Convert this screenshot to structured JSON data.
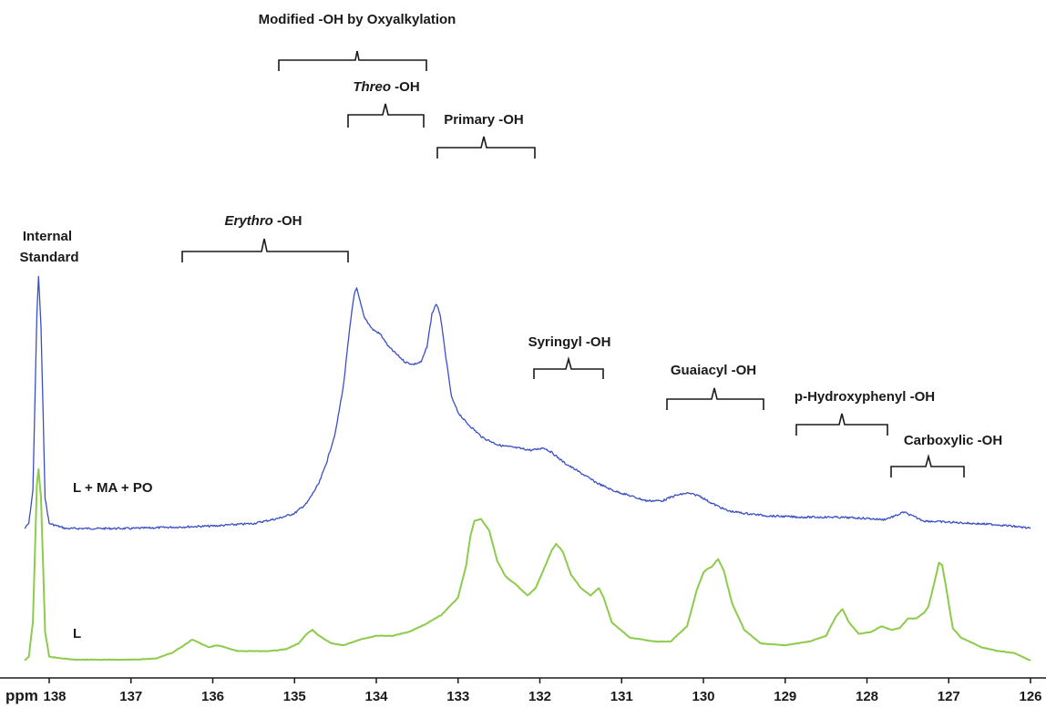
{
  "chart_data": {
    "type": "line",
    "xlabel": "ppm",
    "xlim": [
      138.3,
      126
    ],
    "x_reversed": true,
    "ticks": [
      138,
      137,
      136,
      135,
      134,
      133,
      132,
      131,
      130,
      129,
      128,
      127,
      126
    ],
    "series": [
      {
        "name": "L + MA + PO",
        "color": "#3b4fc4",
        "points": [
          [
            138.3,
            0.0
          ],
          [
            138.25,
            0.02
          ],
          [
            138.2,
            0.15
          ],
          [
            138.15,
            0.85
          ],
          [
            138.13,
            1.0
          ],
          [
            138.1,
            0.8
          ],
          [
            138.05,
            0.12
          ],
          [
            138.0,
            0.02
          ],
          [
            137.8,
            0.0
          ],
          [
            137.5,
            0.0
          ],
          [
            137.0,
            0.0
          ],
          [
            136.5,
            0.005
          ],
          [
            136.0,
            0.01
          ],
          [
            135.5,
            0.02
          ],
          [
            135.2,
            0.04
          ],
          [
            135.0,
            0.06
          ],
          [
            134.85,
            0.1
          ],
          [
            134.7,
            0.18
          ],
          [
            134.6,
            0.27
          ],
          [
            134.5,
            0.38
          ],
          [
            134.4,
            0.57
          ],
          [
            134.35,
            0.72
          ],
          [
            134.3,
            0.86
          ],
          [
            134.27,
            0.93
          ],
          [
            134.24,
            0.95
          ],
          [
            134.2,
            0.9
          ],
          [
            134.15,
            0.84
          ],
          [
            134.05,
            0.79
          ],
          [
            133.95,
            0.77
          ],
          [
            133.85,
            0.72
          ],
          [
            133.75,
            0.69
          ],
          [
            133.65,
            0.66
          ],
          [
            133.55,
            0.65
          ],
          [
            133.45,
            0.66
          ],
          [
            133.38,
            0.72
          ],
          [
            133.32,
            0.85
          ],
          [
            133.27,
            0.89
          ],
          [
            133.22,
            0.85
          ],
          [
            133.15,
            0.68
          ],
          [
            133.08,
            0.52
          ],
          [
            133.0,
            0.46
          ],
          [
            132.9,
            0.42
          ],
          [
            132.8,
            0.39
          ],
          [
            132.7,
            0.36
          ],
          [
            132.5,
            0.33
          ],
          [
            132.3,
            0.32
          ],
          [
            132.1,
            0.31
          ],
          [
            131.95,
            0.32
          ],
          [
            131.85,
            0.3
          ],
          [
            131.7,
            0.26
          ],
          [
            131.5,
            0.22
          ],
          [
            131.3,
            0.18
          ],
          [
            131.1,
            0.15
          ],
          [
            130.9,
            0.13
          ],
          [
            130.7,
            0.11
          ],
          [
            130.5,
            0.11
          ],
          [
            130.35,
            0.13
          ],
          [
            130.2,
            0.14
          ],
          [
            130.05,
            0.13
          ],
          [
            129.9,
            0.1
          ],
          [
            129.7,
            0.07
          ],
          [
            129.5,
            0.06
          ],
          [
            129.2,
            0.05
          ],
          [
            128.8,
            0.045
          ],
          [
            128.4,
            0.045
          ],
          [
            128.0,
            0.04
          ],
          [
            127.8,
            0.035
          ],
          [
            127.65,
            0.05
          ],
          [
            127.55,
            0.065
          ],
          [
            127.45,
            0.05
          ],
          [
            127.3,
            0.03
          ],
          [
            127.0,
            0.025
          ],
          [
            126.7,
            0.02
          ],
          [
            126.4,
            0.015
          ],
          [
            126.1,
            0.005
          ],
          [
            126.0,
            0.0
          ]
        ]
      },
      {
        "name": "L",
        "color": "#8ccc4a",
        "points": [
          [
            138.3,
            0.0
          ],
          [
            138.25,
            0.02
          ],
          [
            138.2,
            0.2
          ],
          [
            138.15,
            0.92
          ],
          [
            138.13,
            1.0
          ],
          [
            138.1,
            0.85
          ],
          [
            138.05,
            0.15
          ],
          [
            138.0,
            0.02
          ],
          [
            137.7,
            0.005
          ],
          [
            137.3,
            0.005
          ],
          [
            137.0,
            0.005
          ],
          [
            136.7,
            0.01
          ],
          [
            136.5,
            0.04
          ],
          [
            136.35,
            0.08
          ],
          [
            136.25,
            0.11
          ],
          [
            136.15,
            0.09
          ],
          [
            136.05,
            0.07
          ],
          [
            135.95,
            0.08
          ],
          [
            135.85,
            0.07
          ],
          [
            135.7,
            0.05
          ],
          [
            135.5,
            0.05
          ],
          [
            135.3,
            0.05
          ],
          [
            135.1,
            0.06
          ],
          [
            134.95,
            0.09
          ],
          [
            134.85,
            0.14
          ],
          [
            134.78,
            0.16
          ],
          [
            134.7,
            0.13
          ],
          [
            134.55,
            0.09
          ],
          [
            134.4,
            0.08
          ],
          [
            134.2,
            0.11
          ],
          [
            134.0,
            0.13
          ],
          [
            133.8,
            0.13
          ],
          [
            133.6,
            0.15
          ],
          [
            133.4,
            0.19
          ],
          [
            133.2,
            0.24
          ],
          [
            133.0,
            0.33
          ],
          [
            132.9,
            0.5
          ],
          [
            132.85,
            0.65
          ],
          [
            132.8,
            0.73
          ],
          [
            132.72,
            0.74
          ],
          [
            132.62,
            0.68
          ],
          [
            132.52,
            0.52
          ],
          [
            132.42,
            0.44
          ],
          [
            132.3,
            0.4
          ],
          [
            132.15,
            0.34
          ],
          [
            132.05,
            0.38
          ],
          [
            131.95,
            0.48
          ],
          [
            131.85,
            0.58
          ],
          [
            131.8,
            0.61
          ],
          [
            131.72,
            0.57
          ],
          [
            131.62,
            0.45
          ],
          [
            131.5,
            0.38
          ],
          [
            131.38,
            0.34
          ],
          [
            131.28,
            0.38
          ],
          [
            131.22,
            0.33
          ],
          [
            131.12,
            0.2
          ],
          [
            130.9,
            0.12
          ],
          [
            130.6,
            0.1
          ],
          [
            130.4,
            0.1
          ],
          [
            130.2,
            0.18
          ],
          [
            130.08,
            0.37
          ],
          [
            130.0,
            0.46
          ],
          [
            129.95,
            0.48
          ],
          [
            129.9,
            0.49
          ],
          [
            129.82,
            0.53
          ],
          [
            129.75,
            0.47
          ],
          [
            129.65,
            0.3
          ],
          [
            129.5,
            0.16
          ],
          [
            129.3,
            0.09
          ],
          [
            129.0,
            0.08
          ],
          [
            128.7,
            0.1
          ],
          [
            128.5,
            0.13
          ],
          [
            128.38,
            0.23
          ],
          [
            128.3,
            0.27
          ],
          [
            128.22,
            0.2
          ],
          [
            128.1,
            0.14
          ],
          [
            127.95,
            0.15
          ],
          [
            127.82,
            0.18
          ],
          [
            127.7,
            0.16
          ],
          [
            127.6,
            0.17
          ],
          [
            127.5,
            0.22
          ],
          [
            127.4,
            0.22
          ],
          [
            127.3,
            0.25
          ],
          [
            127.25,
            0.28
          ],
          [
            127.18,
            0.4
          ],
          [
            127.12,
            0.51
          ],
          [
            127.08,
            0.5
          ],
          [
            127.02,
            0.35
          ],
          [
            126.95,
            0.17
          ],
          [
            126.85,
            0.12
          ],
          [
            126.75,
            0.1
          ],
          [
            126.6,
            0.07
          ],
          [
            126.4,
            0.05
          ],
          [
            126.2,
            0.04
          ],
          [
            126.05,
            0.01
          ],
          [
            126.0,
            0.0
          ]
        ]
      }
    ],
    "series_labels": [
      "L + MA + PO",
      "L"
    ],
    "annotations": [
      {
        "text": "Internal Standard",
        "lines": [
          "Internal",
          "Standard"
        ]
      },
      {
        "text": "Modified -OH by Oxyalkylation",
        "from": 135.4,
        "to": 133.5
      },
      {
        "text": "Threo -OH",
        "italic_part": "Threo",
        "rest": " -OH",
        "from": 134.4,
        "to": 133.45
      },
      {
        "text": "Erythro -OH",
        "italic_part": "Erythro",
        "rest": " -OH",
        "from": 136.55,
        "to": 134.45
      },
      {
        "text": "Primary -OH",
        "from": 133.3,
        "to": 132.1
      },
      {
        "text": "Syringyl -OH",
        "from": 132.05,
        "to": 131.3
      },
      {
        "text": "Guaiacyl -OH",
        "from": 130.45,
        "to": 129.35
      },
      {
        "text": "p-Hydroxyphenyl -OH",
        "from": 128.85,
        "to": 127.75
      },
      {
        "text": "Carboxylic -OH",
        "from": 127.65,
        "to": 126.8
      }
    ]
  }
}
